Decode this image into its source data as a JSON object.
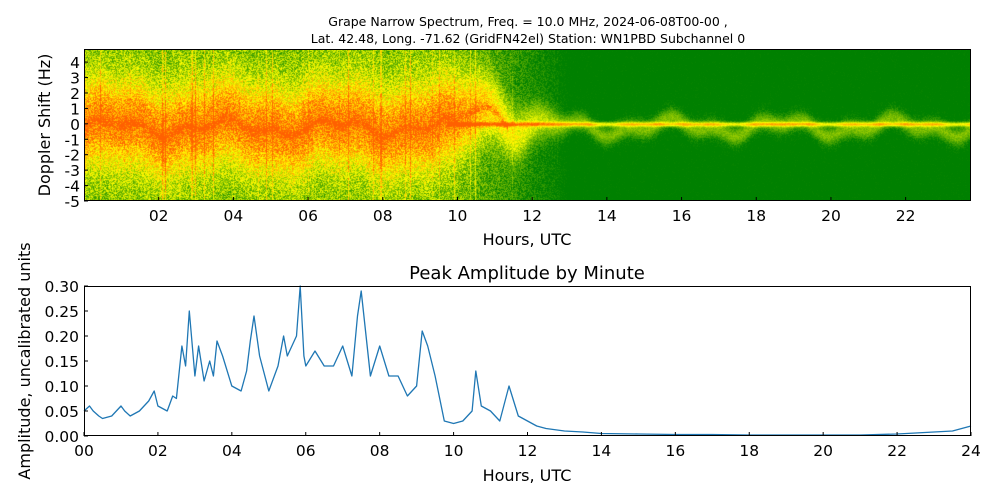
{
  "chart_data": [
    {
      "type": "heatmap",
      "title_line1": "Grape Narrow Spectrum, Freq. = 10.0 MHz, 2024-06-08T00-00 ,",
      "title_line2": "Lat.  42.48, Long. -71.62 (GridFN42el) Station: WN1PBD Subchannel 0",
      "xlabel": "Hours, UTC",
      "ylabel": "Doppler Shift (Hz)",
      "xlim": [
        0,
        23.75
      ],
      "ylim": [
        -5,
        4.85
      ],
      "xticks": [
        2,
        4,
        6,
        8,
        10,
        12,
        14,
        16,
        18,
        20,
        22
      ],
      "xtick_labels": [
        "02",
        "04",
        "06",
        "08",
        "10",
        "12",
        "14",
        "16",
        "18",
        "20",
        "22"
      ],
      "yticks": [
        -5,
        -4,
        -3,
        -2,
        -1,
        0,
        1,
        2,
        3,
        4
      ],
      "ytick_labels": [
        "-5",
        "-4",
        "-3",
        "-2",
        "-1",
        "0",
        "1",
        "2",
        "3",
        "4"
      ],
      "colors": {
        "low": "#008000",
        "mid": "#ffff00",
        "high": "#ff6000"
      }
    },
    {
      "type": "line",
      "title": "Peak Amplitude by Minute",
      "xlabel": "Hours, UTC",
      "ylabel": "Amplitude, uncalibrated units",
      "xlim": [
        0,
        24
      ],
      "ylim": [
        0,
        0.3
      ],
      "xticks": [
        0,
        2,
        4,
        6,
        8,
        10,
        12,
        14,
        16,
        18,
        20,
        22,
        24
      ],
      "xtick_labels": [
        "00",
        "02",
        "04",
        "06",
        "08",
        "10",
        "12",
        "14",
        "16",
        "18",
        "20",
        "22",
        "24"
      ],
      "yticks": [
        0,
        0.05,
        0.1,
        0.15,
        0.2,
        0.25,
        0.3
      ],
      "ytick_labels": [
        "0.00",
        "0.05",
        "0.10",
        "0.15",
        "0.20",
        "0.25",
        "0.30"
      ],
      "line_color": "#1f77b4",
      "x": [
        0,
        0.15,
        0.25,
        0.4,
        0.5,
        0.75,
        1.0,
        1.1,
        1.25,
        1.5,
        1.75,
        1.9,
        2.0,
        2.25,
        2.4,
        2.5,
        2.65,
        2.75,
        2.85,
        3.0,
        3.1,
        3.25,
        3.4,
        3.5,
        3.6,
        3.75,
        4.0,
        4.25,
        4.4,
        4.5,
        4.6,
        4.75,
        5.0,
        5.25,
        5.4,
        5.5,
        5.75,
        5.85,
        5.95,
        6.0,
        6.25,
        6.5,
        6.75,
        7.0,
        7.25,
        7.4,
        7.5,
        7.75,
        8.0,
        8.25,
        8.5,
        8.75,
        9.0,
        9.15,
        9.3,
        9.5,
        9.75,
        10.0,
        10.25,
        10.5,
        10.6,
        10.75,
        11.0,
        11.25,
        11.5,
        11.75,
        12.0,
        12.25,
        12.5,
        13.0,
        13.5,
        14.0,
        15.0,
        16.0,
        17.0,
        18.0,
        19.0,
        20.0,
        21.0,
        22.0,
        22.5,
        23.0,
        23.5,
        24.0
      ],
      "y": [
        0.05,
        0.06,
        0.05,
        0.04,
        0.035,
        0.04,
        0.06,
        0.05,
        0.04,
        0.05,
        0.07,
        0.09,
        0.06,
        0.05,
        0.08,
        0.075,
        0.18,
        0.14,
        0.25,
        0.12,
        0.18,
        0.11,
        0.15,
        0.12,
        0.19,
        0.16,
        0.1,
        0.09,
        0.13,
        0.19,
        0.24,
        0.16,
        0.09,
        0.14,
        0.2,
        0.16,
        0.2,
        0.3,
        0.16,
        0.14,
        0.17,
        0.14,
        0.14,
        0.18,
        0.12,
        0.24,
        0.29,
        0.12,
        0.18,
        0.12,
        0.12,
        0.08,
        0.1,
        0.21,
        0.18,
        0.12,
        0.03,
        0.025,
        0.03,
        0.05,
        0.13,
        0.06,
        0.05,
        0.03,
        0.1,
        0.04,
        0.03,
        0.02,
        0.015,
        0.01,
        0.008,
        0.005,
        0.004,
        0.003,
        0.003,
        0.002,
        0.002,
        0.002,
        0.002,
        0.004,
        0.006,
        0.008,
        0.01,
        0.02
      ]
    }
  ]
}
